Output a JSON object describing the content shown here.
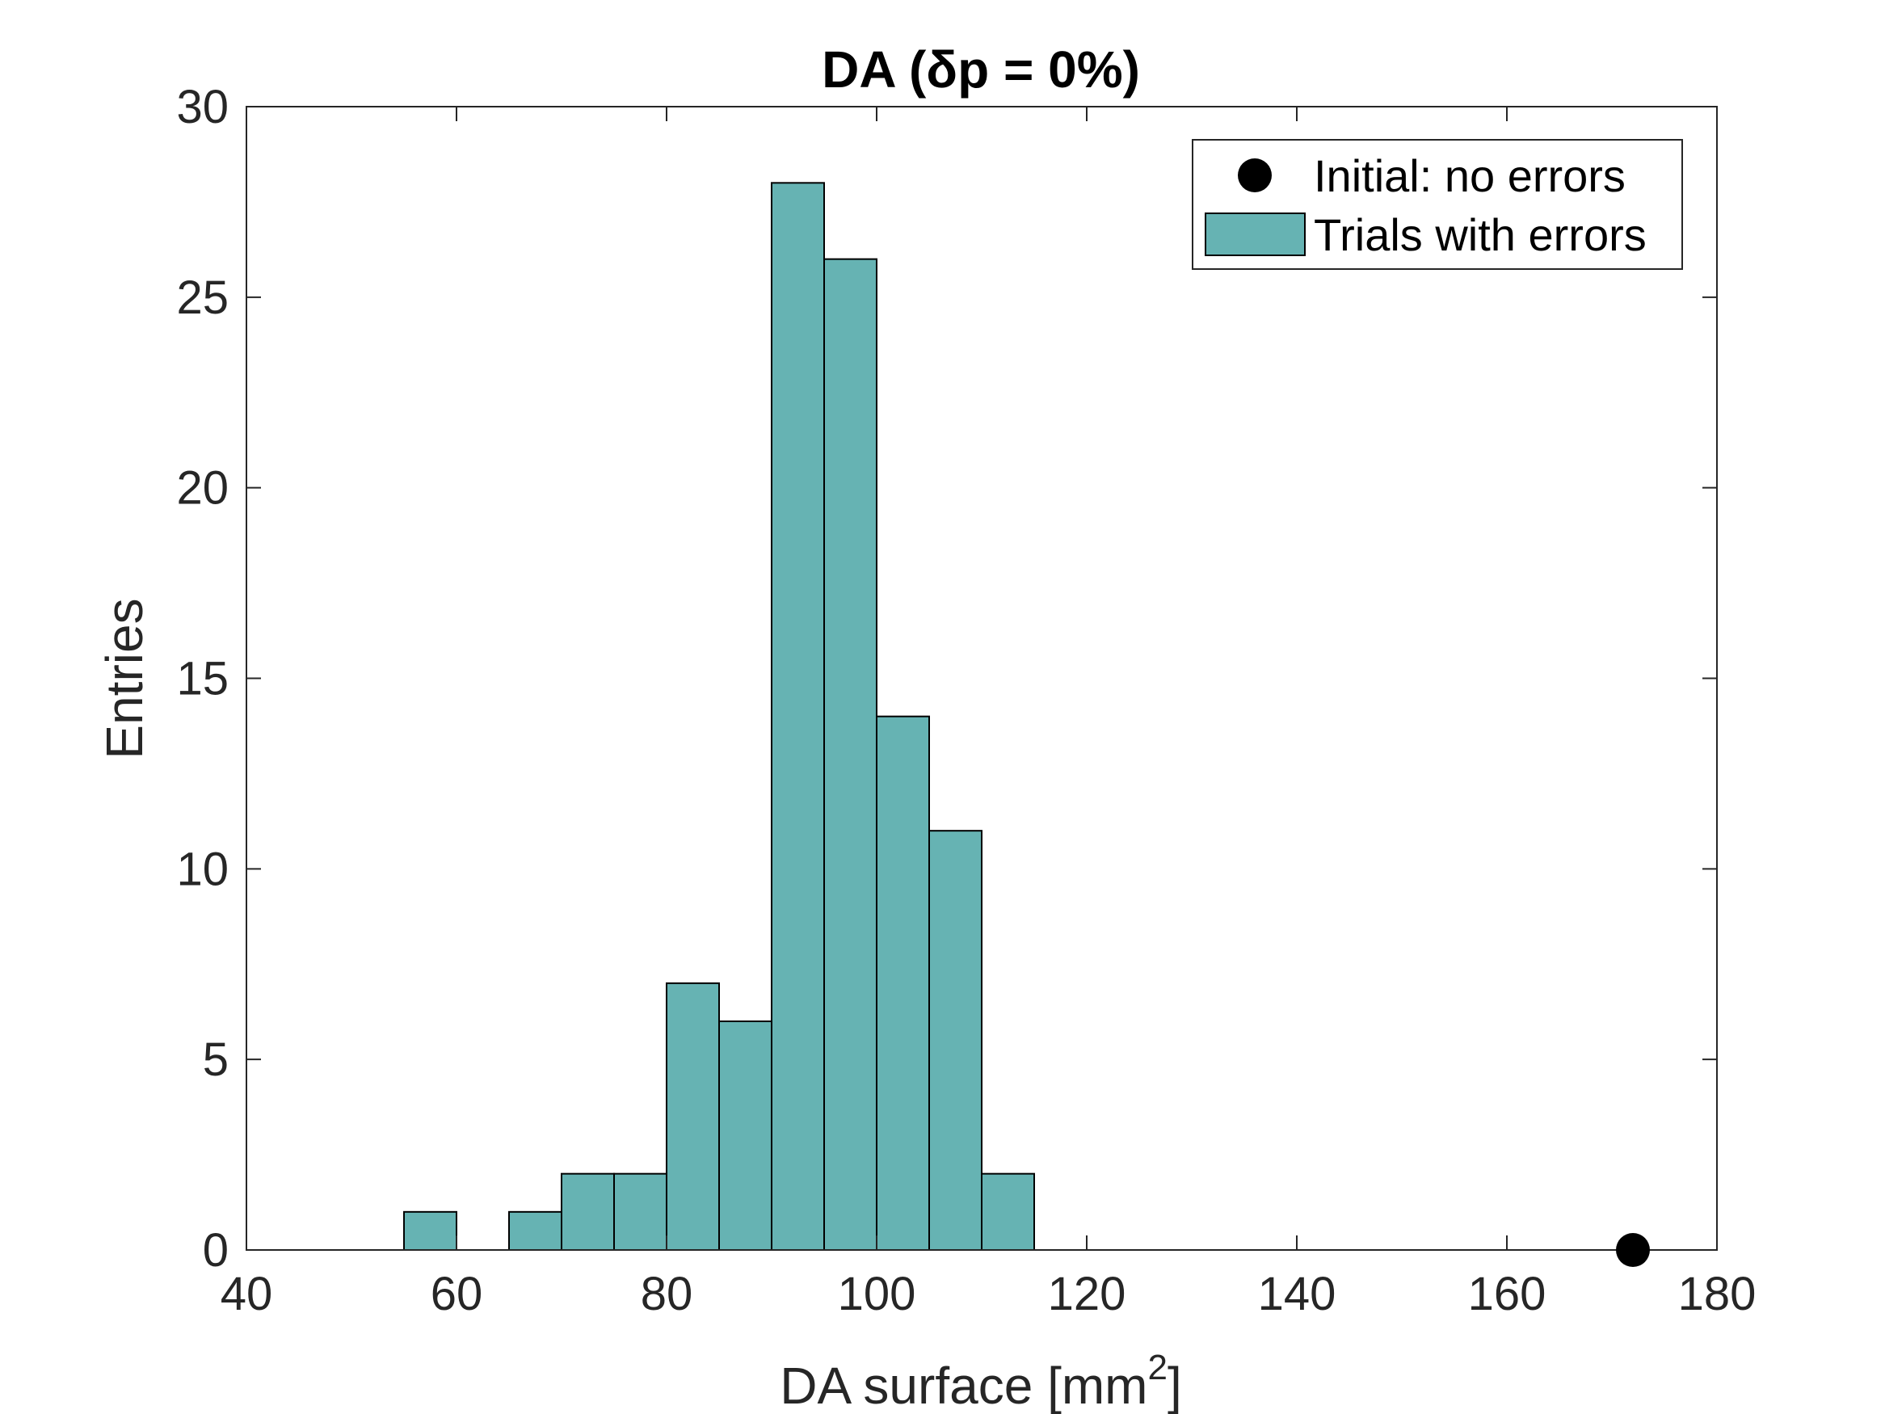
{
  "chart_data": {
    "type": "bar",
    "title": "DA (δp = 0%)",
    "xlabel_base": "DA surface [mm",
    "xlabel_sup": "2",
    "xlabel_close": "]",
    "ylabel": "Entries",
    "xlim": [
      40,
      180
    ],
    "ylim": [
      0,
      30
    ],
    "xticks": [
      "40",
      "60",
      "80",
      "100",
      "120",
      "140",
      "160",
      "180"
    ],
    "yticks": [
      "0",
      "5",
      "10",
      "15",
      "20",
      "25",
      "30"
    ],
    "bin_width": 5,
    "bins": [
      {
        "x0": 55,
        "count": 1
      },
      {
        "x0": 60,
        "count": 0
      },
      {
        "x0": 65,
        "count": 1
      },
      {
        "x0": 70,
        "count": 2
      },
      {
        "x0": 75,
        "count": 2
      },
      {
        "x0": 80,
        "count": 7
      },
      {
        "x0": 85,
        "count": 6
      },
      {
        "x0": 90,
        "count": 28
      },
      {
        "x0": 95,
        "count": 26
      },
      {
        "x0": 100,
        "count": 14
      },
      {
        "x0": 105,
        "count": 11
      },
      {
        "x0": 110,
        "count": 2
      }
    ],
    "points": [
      {
        "name": "Initial: no errors",
        "x": 172,
        "y": 0
      }
    ],
    "legend": {
      "position": "top-right",
      "entries": [
        "Initial: no errors",
        "Trials with errors"
      ]
    },
    "grid": false,
    "colors": {
      "bar_fill": "#66b3b3",
      "bar_edge": "#000000",
      "marker": "#000000",
      "axis": "#262626"
    }
  }
}
